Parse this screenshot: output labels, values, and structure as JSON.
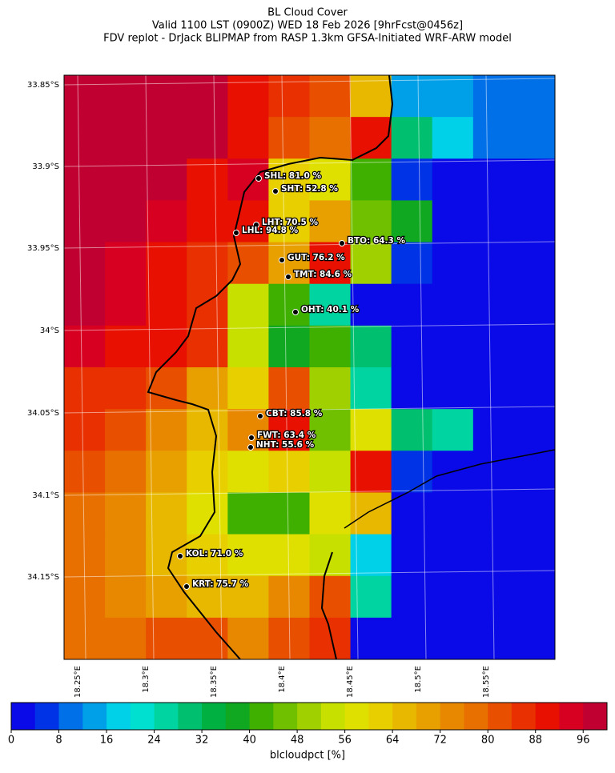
{
  "header": {
    "title": [
      "BL Cloud Cover",
      "Valid 1100 LST (0900Z) WED 18 Feb 2026 [9hrFcst@0456z]",
      "FDV replot - DrJack BLIPMAP from RASP 1.3km GFSA-Initiated WRF-ARW model"
    ]
  },
  "map": {
    "lat_labels": [
      "33.85°S",
      "33.9°S",
      "33.95°S",
      "34°S",
      "34.05°S",
      "34.1°S",
      "34.15°S"
    ],
    "lon_labels": [
      "18.25°E",
      "18.3°E",
      "18.35°E",
      "18.4°E",
      "18.45°E",
      "18.5°E",
      "18.55°E"
    ],
    "grid": {
      "rows": [
        [
          97,
          97,
          97,
          97,
          90,
          86,
          80,
          66,
          12,
          14,
          10,
          8
        ],
        [
          97,
          97,
          97,
          97,
          90,
          82,
          76,
          90,
          30,
          18,
          8,
          8
        ],
        [
          97,
          97,
          97,
          90,
          92,
          62,
          56,
          40,
          4,
          2,
          2,
          2
        ],
        [
          97,
          97,
          95,
          88,
          88,
          62,
          70,
          46,
          36,
          2,
          2,
          2
        ],
        [
          97,
          95,
          88,
          86,
          80,
          70,
          88,
          50,
          4,
          2,
          2,
          2
        ],
        [
          97,
          94,
          90,
          85,
          55,
          40,
          24,
          2,
          2,
          2,
          2,
          2
        ],
        [
          92,
          90,
          88,
          84,
          52,
          36,
          42,
          28,
          2,
          2,
          2,
          2
        ],
        [
          86,
          84,
          80,
          70,
          60,
          82,
          50,
          26,
          2,
          2,
          2,
          2
        ],
        [
          84,
          80,
          74,
          64,
          72,
          90,
          44,
          58,
          30,
          24,
          2,
          2
        ],
        [
          80,
          76,
          70,
          60,
          56,
          60,
          52,
          88,
          4,
          2,
          2,
          2
        ],
        [
          78,
          72,
          66,
          56,
          40,
          40,
          56,
          66,
          2,
          2,
          2,
          2
        ],
        [
          76,
          72,
          66,
          62,
          56,
          56,
          52,
          18,
          2,
          2,
          2,
          2
        ],
        [
          76,
          74,
          70,
          66,
          66,
          72,
          80,
          26,
          2,
          2,
          2,
          2
        ],
        [
          76,
          76,
          80,
          82,
          74,
          80,
          86,
          2,
          2,
          2,
          2,
          2
        ]
      ]
    },
    "stations": [
      {
        "label": "SHL: 81.0 %"
      },
      {
        "label": "SHT: 52.8 %"
      },
      {
        "label": "LHT: 70.5 %"
      },
      {
        "label": "LHL: 94.8 %"
      },
      {
        "label": "BTO: 64.3 %"
      },
      {
        "label": "GUT: 76.2 %"
      },
      {
        "label": "TMT: 84.6 %"
      },
      {
        "label": "OHT: 40.1 %"
      },
      {
        "label": "CBT: 85.8 %"
      },
      {
        "label": "FWT: 63.4 %"
      },
      {
        "label": "NHT: 55.6 %"
      },
      {
        "label": "KOL: 71.0 %"
      },
      {
        "label": "KRT: 75.7 %"
      }
    ]
  },
  "colorbar": {
    "label": "blcloudpct [%]",
    "lim": [
      0,
      100
    ],
    "ticks": [
      0,
      8,
      16,
      24,
      32,
      40,
      48,
      56,
      64,
      72,
      80,
      88,
      96
    ],
    "colors": [
      "#0a0ae8",
      "#0032e6",
      "#0070e8",
      "#00a0e8",
      "#00d0e8",
      "#00e0d0",
      "#00d4a0",
      "#00c070",
      "#00b040",
      "#10a820",
      "#40b000",
      "#70c000",
      "#a0d000",
      "#c8e000",
      "#e0e000",
      "#e8d000",
      "#e8b800",
      "#e8a000",
      "#e88800",
      "#e87000",
      "#e85000",
      "#e83000",
      "#e81000",
      "#d80020",
      "#c00030"
    ]
  }
}
